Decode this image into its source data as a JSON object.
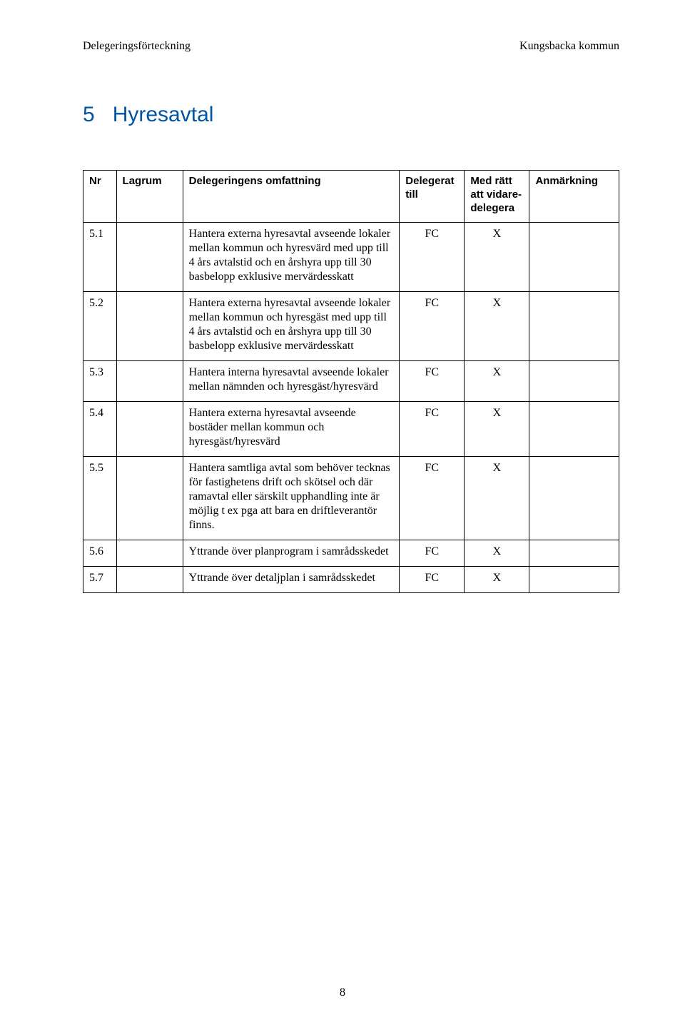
{
  "header": {
    "left": "Delegeringsförteckning",
    "right": "Kungsbacka kommun"
  },
  "section": {
    "number": "5",
    "title": "Hyresavtal"
  },
  "table": {
    "columns": {
      "nr": "Nr",
      "lagrum": "Lagrum",
      "omfattning": "Delegeringens omfattning",
      "delegerat": "Delegerat till",
      "vidare": "Med rätt att vidare-delegera",
      "anm": "Anmärkning"
    },
    "rows": [
      {
        "nr": "5.1",
        "lagrum": "",
        "omfattning": "Hantera externa hyresavtal avseende lokaler mellan kommun och hyresvärd med upp till 4 års avtalstid och en årshyra upp till 30 basbelopp exklusive mervärdesskatt",
        "delegerat": "FC",
        "vidare": "X",
        "anm": ""
      },
      {
        "nr": "5.2",
        "lagrum": "",
        "omfattning": "Hantera externa hyresavtal avseende lokaler mellan kommun och hyresgäst med upp till 4 års avtalstid och en årshyra upp till 30 basbelopp exklusive mervärdesskatt",
        "delegerat": "FC",
        "vidare": "X",
        "anm": ""
      },
      {
        "nr": "5.3",
        "lagrum": "",
        "omfattning": "Hantera interna hyresavtal avseende lokaler mellan nämnden och hyresgäst/hyresvärd",
        "delegerat": "FC",
        "vidare": "X",
        "anm": ""
      },
      {
        "nr": "5.4",
        "lagrum": "",
        "omfattning": "Hantera externa hyresavtal avseende bostäder mellan kommun och hyresgäst/hyresvärd",
        "delegerat": "FC",
        "vidare": "X",
        "anm": ""
      },
      {
        "nr": "5.5",
        "lagrum": "",
        "omfattning": "Hantera samtliga avtal som behöver tecknas för fastighetens drift och skötsel och där ramavtal eller särskilt upphandling inte är möjlig t ex pga att bara en driftleverantör finns.",
        "delegerat": "FC",
        "vidare": "X",
        "anm": ""
      },
      {
        "nr": "5.6",
        "lagrum": "",
        "omfattning": "Yttrande över planprogram i samrådsskedet",
        "delegerat": "FC",
        "vidare": "X",
        "anm": ""
      },
      {
        "nr": "5.7",
        "lagrum": "",
        "omfattning": "Yttrande över detaljplan i samrådsskedet",
        "delegerat": "FC",
        "vidare": "X",
        "anm": ""
      }
    ]
  },
  "pageNumber": "8",
  "colors": {
    "heading": "#0054a4",
    "text": "#000000",
    "border": "#000000",
    "background": "#ffffff"
  }
}
